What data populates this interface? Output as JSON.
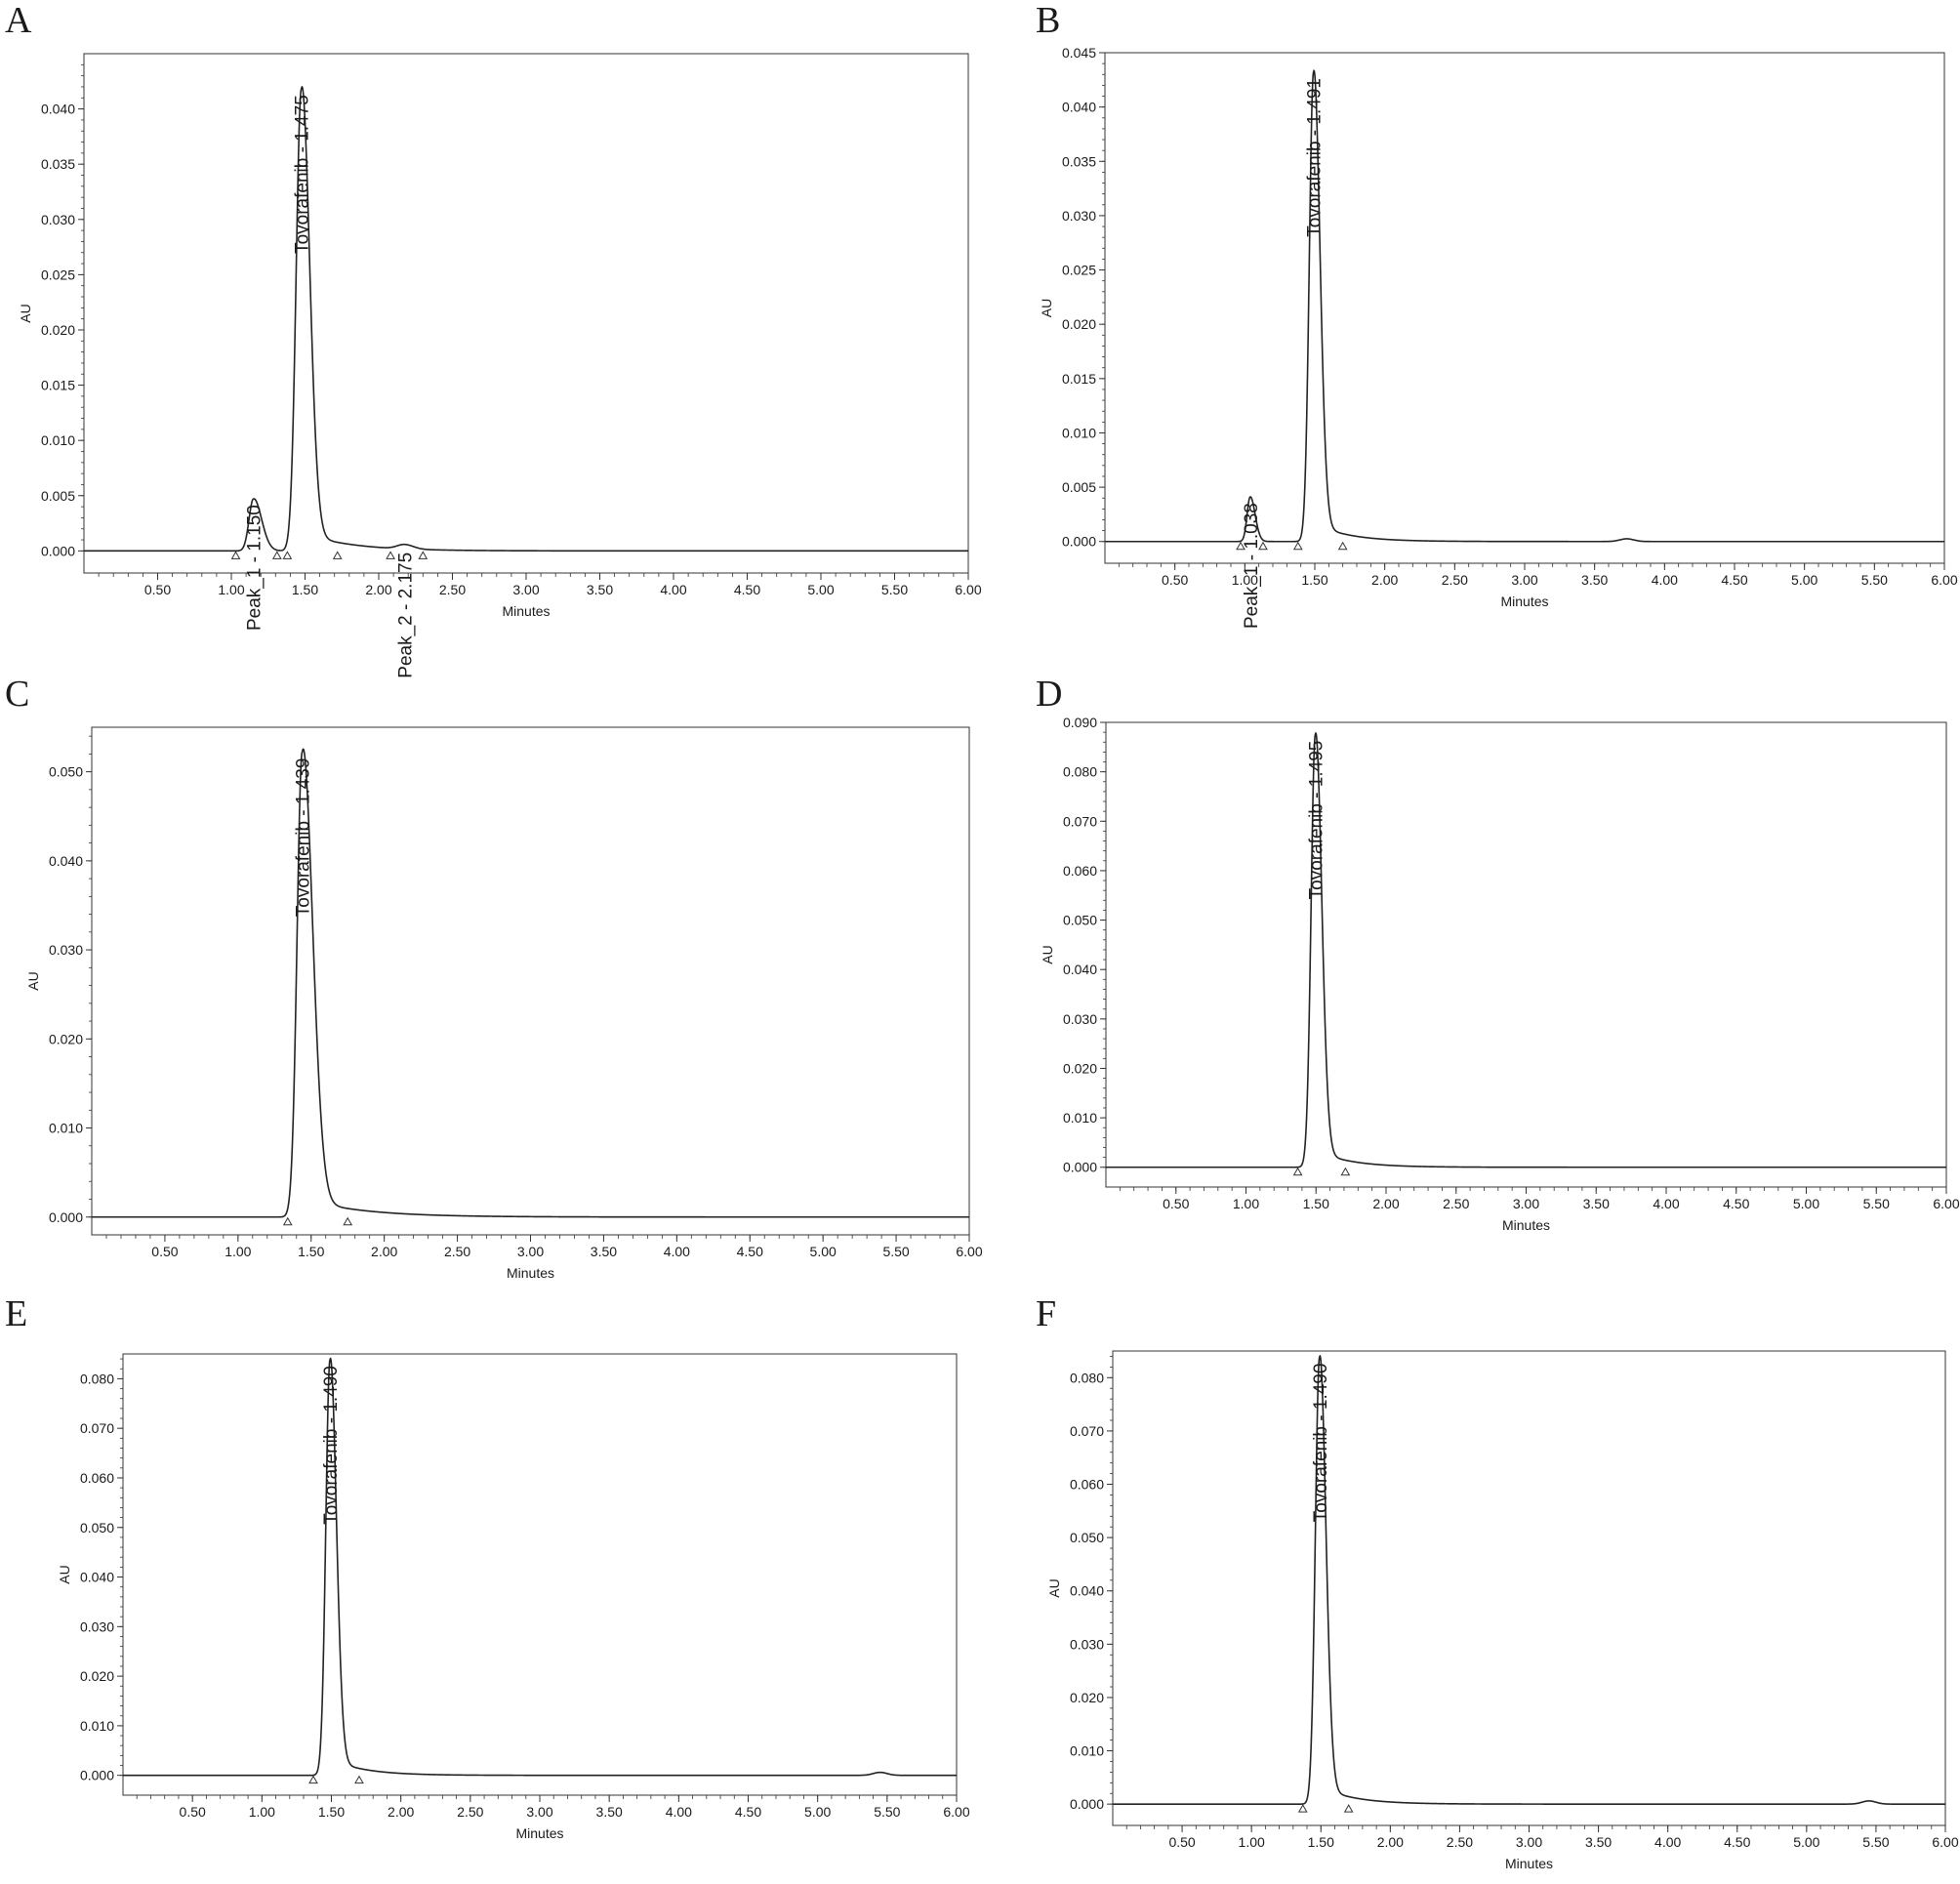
{
  "figure": {
    "panels": [
      {
        "letter": "A"
      },
      {
        "letter": "B"
      },
      {
        "letter": "C"
      },
      {
        "letter": "D"
      },
      {
        "letter": "E"
      },
      {
        "letter": "F"
      }
    ]
  },
  "chart_data": [
    {
      "type": "line",
      "panel": "A",
      "xlabel": "Minutes",
      "ylabel": "AU",
      "xlim": [
        0,
        6.0
      ],
      "ylim": [
        -0.002,
        0.045
      ],
      "x_ticks": [
        "0.50",
        "1.00",
        "1.50",
        "2.00",
        "2.50",
        "3.00",
        "3.50",
        "4.00",
        "4.50",
        "5.00",
        "5.50",
        "6.00"
      ],
      "y_ticks": [
        "0.000",
        "0.005",
        "0.010",
        "0.015",
        "0.020",
        "0.025",
        "0.030",
        "0.035",
        "0.040"
      ],
      "baseline": 0.0,
      "peaks": [
        {
          "label": "Peak_1 - 1.150",
          "rt": 1.15,
          "height": 0.0047,
          "sigma_left": 0.03,
          "sigma_right": 0.055,
          "tail": 0.01,
          "start": 1.03,
          "end": 1.31
        },
        {
          "label": "Tovorafenib - 1.475",
          "rt": 1.475,
          "height": 0.0418,
          "sigma_left": 0.035,
          "sigma_right": 0.055,
          "tail": 0.08,
          "start": 1.38,
          "end": 1.72
        },
        {
          "label": "Peak_2 - 2.175",
          "rt": 2.175,
          "height": 0.0004,
          "sigma_left": 0.05,
          "sigma_right": 0.06,
          "tail": 0.0,
          "start": 2.08,
          "end": 2.3
        }
      ],
      "bumps": []
    },
    {
      "type": "line",
      "panel": "B",
      "xlabel": "Minutes",
      "ylabel": "AU",
      "xlim": [
        0,
        6.0
      ],
      "ylim": [
        -0.002,
        0.045
      ],
      "x_ticks": [
        "0.50",
        "1.00",
        "1.50",
        "2.00",
        "2.50",
        "3.00",
        "3.50",
        "4.00",
        "4.50",
        "5.00",
        "5.50",
        "6.00"
      ],
      "y_ticks": [
        "0.000",
        "0.005",
        "0.010",
        "0.015",
        "0.020",
        "0.025",
        "0.030",
        "0.035",
        "0.040",
        "0.045"
      ],
      "baseline": 0.0,
      "peaks": [
        {
          "label": "Peak_1 - 1.038",
          "rt": 1.038,
          "height": 0.0041,
          "sigma_left": 0.022,
          "sigma_right": 0.035,
          "tail": 0.008,
          "start": 0.97,
          "end": 1.13
        },
        {
          "label": "Tovorafenib - 1.491",
          "rt": 1.491,
          "height": 0.0432,
          "sigma_left": 0.03,
          "sigma_right": 0.045,
          "tail": 0.06,
          "start": 1.38,
          "end": 1.7
        }
      ],
      "bumps": [
        {
          "rt": 3.73,
          "height": 0.00025,
          "sigma": 0.05
        }
      ]
    },
    {
      "type": "line",
      "panel": "C",
      "xlabel": "Minutes",
      "ylabel": "AU",
      "xlim": [
        0,
        6.0
      ],
      "ylim": [
        -0.002,
        0.055
      ],
      "x_ticks": [
        "0.50",
        "1.00",
        "1.50",
        "2.00",
        "2.50",
        "3.00",
        "3.50",
        "4.00",
        "4.50",
        "5.00",
        "5.50",
        "6.00"
      ],
      "y_ticks": [
        "0.000",
        "0.010",
        "0.020",
        "0.030",
        "0.040",
        "0.050"
      ],
      "baseline": 0.0,
      "peaks": [
        {
          "label": "Tovorafenib - 1.439",
          "rt": 1.439,
          "height": 0.0522,
          "sigma_left": 0.035,
          "sigma_right": 0.07,
          "tail": 0.1,
          "start": 1.34,
          "end": 1.75
        }
      ],
      "bumps": []
    },
    {
      "type": "line",
      "panel": "D",
      "xlabel": "Minutes",
      "ylabel": "AU",
      "xlim": [
        0,
        6.0
      ],
      "ylim": [
        -0.004,
        0.09
      ],
      "x_ticks": [
        "0.50",
        "1.00",
        "1.50",
        "2.00",
        "2.50",
        "3.00",
        "3.50",
        "4.00",
        "4.50",
        "5.00",
        "5.50",
        "6.00"
      ],
      "y_ticks": [
        "0.000",
        "0.010",
        "0.020",
        "0.030",
        "0.040",
        "0.050",
        "0.060",
        "0.070",
        "0.080",
        "0.090"
      ],
      "baseline": 0.0,
      "peaks": [
        {
          "label": "Tovorafenib - 1.495",
          "rt": 1.495,
          "height": 0.0875,
          "sigma_left": 0.03,
          "sigma_right": 0.045,
          "tail": 0.06,
          "start": 1.37,
          "end": 1.71
        }
      ],
      "bumps": []
    },
    {
      "type": "line",
      "panel": "E",
      "xlabel": "Minutes",
      "ylabel": "AU",
      "xlim": [
        0,
        6.0
      ],
      "ylim": [
        -0.004,
        0.085
      ],
      "x_ticks": [
        "0.50",
        "1.00",
        "1.50",
        "2.00",
        "2.50",
        "3.00",
        "3.50",
        "4.00",
        "4.50",
        "5.00",
        "5.50",
        "6.00"
      ],
      "y_ticks": [
        "0.000",
        "0.010",
        "0.020",
        "0.030",
        "0.040",
        "0.050",
        "0.060",
        "0.070",
        "0.080"
      ],
      "baseline": 0.0,
      "peaks": [
        {
          "label": "Tovorafenib - 1.490",
          "rt": 1.49,
          "height": 0.0838,
          "sigma_left": 0.03,
          "sigma_right": 0.045,
          "tail": 0.06,
          "start": 1.37,
          "end": 1.7
        }
      ],
      "bumps": [
        {
          "rt": 5.45,
          "height": 0.0006,
          "sigma": 0.05
        }
      ]
    },
    {
      "type": "line",
      "panel": "F",
      "xlabel": "Minutes",
      "ylabel": "AU",
      "xlim": [
        0,
        6.0
      ],
      "ylim": [
        -0.004,
        0.085
      ],
      "x_ticks": [
        "0.50",
        "1.00",
        "1.50",
        "2.00",
        "2.50",
        "3.00",
        "3.50",
        "4.00",
        "4.50",
        "5.00",
        "5.50",
        "6.00"
      ],
      "y_ticks": [
        "0.000",
        "0.010",
        "0.020",
        "0.030",
        "0.040",
        "0.050",
        "0.060",
        "0.070",
        "0.080"
      ],
      "baseline": 0.0,
      "peaks": [
        {
          "label": "Tovorafenib - 1.490",
          "rt": 1.49,
          "height": 0.0838,
          "sigma_left": 0.03,
          "sigma_right": 0.045,
          "tail": 0.06,
          "start": 1.37,
          "end": 1.7
        }
      ],
      "bumps": [
        {
          "rt": 5.45,
          "height": 0.0006,
          "sigma": 0.05
        }
      ]
    }
  ]
}
